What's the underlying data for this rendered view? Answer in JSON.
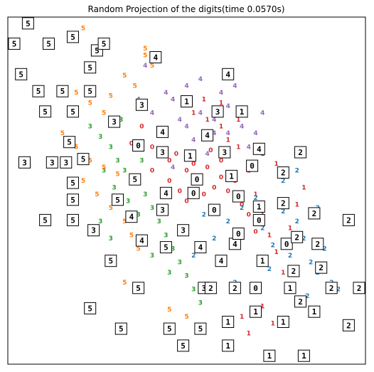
{
  "chart_data": {
    "type": "scatter",
    "title": "Random Projection of the digits(time 0.0570s)",
    "xlabel": "",
    "ylabel": "",
    "xlim": [
      0,
      1
    ],
    "ylim": [
      0,
      1
    ],
    "grid": false,
    "ticks": false,
    "colors": {
      "0": "#d62728",
      "1": "#d62728",
      "2": "#1f77b4",
      "3": "#2ca02c",
      "4": "#9467bd",
      "5": "#ff7f0e"
    },
    "series": [
      {
        "name": "0",
        "label": "0",
        "points": [
          [
            0.34,
            0.63
          ],
          [
            0.37,
            0.68
          ],
          [
            0.4,
            0.62
          ],
          [
            0.43,
            0.66
          ],
          [
            0.45,
            0.58
          ],
          [
            0.47,
            0.6
          ],
          [
            0.5,
            0.55
          ],
          [
            0.52,
            0.57
          ],
          [
            0.54,
            0.52
          ],
          [
            0.56,
            0.56
          ],
          [
            0.58,
            0.5
          ],
          [
            0.6,
            0.53
          ],
          [
            0.62,
            0.49
          ],
          [
            0.64,
            0.52
          ],
          [
            0.66,
            0.45
          ],
          [
            0.68,
            0.42
          ],
          [
            0.7,
            0.37
          ],
          [
            0.55,
            0.48
          ],
          [
            0.6,
            0.58
          ],
          [
            0.62,
            0.61
          ],
          [
            0.57,
            0.61
          ],
          [
            0.48,
            0.49
          ],
          [
            0.45,
            0.52
          ],
          [
            0.4,
            0.55
          ],
          [
            0.5,
            0.46
          ]
        ]
      },
      {
        "name": "1",
        "label": "1",
        "points": [
          [
            0.55,
            0.76
          ],
          [
            0.52,
            0.72
          ],
          [
            0.56,
            0.7
          ],
          [
            0.6,
            0.68
          ],
          [
            0.62,
            0.64
          ],
          [
            0.65,
            0.62
          ],
          [
            0.68,
            0.55
          ],
          [
            0.7,
            0.48
          ],
          [
            0.72,
            0.42
          ],
          [
            0.74,
            0.36
          ],
          [
            0.76,
            0.31
          ],
          [
            0.78,
            0.25
          ],
          [
            0.7,
            0.2
          ],
          [
            0.72,
            0.15
          ],
          [
            0.75,
            0.1
          ],
          [
            0.68,
            0.07
          ],
          [
            0.66,
            0.12
          ],
          [
            0.8,
            0.38
          ],
          [
            0.82,
            0.45
          ],
          [
            0.86,
            0.42
          ],
          [
            0.84,
            0.5
          ],
          [
            0.76,
            0.57
          ],
          [
            0.72,
            0.6
          ],
          [
            0.65,
            0.7
          ],
          [
            0.6,
            0.75
          ]
        ]
      },
      {
        "name": "2",
        "label": "2",
        "points": [
          [
            0.62,
            0.4
          ],
          [
            0.66,
            0.44
          ],
          [
            0.7,
            0.47
          ],
          [
            0.72,
            0.38
          ],
          [
            0.75,
            0.33
          ],
          [
            0.78,
            0.43
          ],
          [
            0.8,
            0.3
          ],
          [
            0.82,
            0.4
          ],
          [
            0.84,
            0.35
          ],
          [
            0.86,
            0.28
          ],
          [
            0.88,
            0.25
          ],
          [
            0.9,
            0.32
          ],
          [
            0.92,
            0.22
          ],
          [
            0.58,
            0.35
          ],
          [
            0.55,
            0.42
          ],
          [
            0.6,
            0.28
          ],
          [
            0.64,
            0.22
          ],
          [
            0.52,
            0.3
          ],
          [
            0.48,
            0.38
          ],
          [
            0.74,
            0.26
          ],
          [
            0.78,
            0.52
          ],
          [
            0.82,
            0.55
          ],
          [
            0.88,
            0.44
          ],
          [
            0.94,
            0.2
          ],
          [
            0.85,
            0.18
          ]
        ]
      },
      {
        "name": "3",
        "label": "3",
        "points": [
          [
            0.22,
            0.68
          ],
          [
            0.25,
            0.65
          ],
          [
            0.28,
            0.62
          ],
          [
            0.3,
            0.58
          ],
          [
            0.32,
            0.55
          ],
          [
            0.35,
            0.52
          ],
          [
            0.38,
            0.48
          ],
          [
            0.4,
            0.44
          ],
          [
            0.42,
            0.4
          ],
          [
            0.44,
            0.36
          ],
          [
            0.46,
            0.32
          ],
          [
            0.48,
            0.28
          ],
          [
            0.5,
            0.24
          ],
          [
            0.26,
            0.55
          ],
          [
            0.29,
            0.5
          ],
          [
            0.33,
            0.46
          ],
          [
            0.36,
            0.42
          ],
          [
            0.25,
            0.4
          ],
          [
            0.28,
            0.35
          ],
          [
            0.52,
            0.2
          ],
          [
            0.54,
            0.16
          ],
          [
            0.45,
            0.25
          ],
          [
            0.4,
            0.3
          ],
          [
            0.37,
            0.58
          ],
          [
            0.31,
            0.7
          ]
        ]
      },
      {
        "name": "4",
        "label": "4",
        "points": [
          [
            0.38,
            0.86
          ],
          [
            0.46,
            0.76
          ],
          [
            0.5,
            0.8
          ],
          [
            0.54,
            0.72
          ],
          [
            0.58,
            0.7
          ],
          [
            0.62,
            0.74
          ],
          [
            0.66,
            0.68
          ],
          [
            0.7,
            0.66
          ],
          [
            0.72,
            0.72
          ],
          [
            0.6,
            0.78
          ],
          [
            0.48,
            0.7
          ],
          [
            0.44,
            0.66
          ],
          [
            0.42,
            0.6
          ],
          [
            0.46,
            0.56
          ],
          [
            0.52,
            0.64
          ],
          [
            0.56,
            0.6
          ],
          [
            0.4,
            0.72
          ],
          [
            0.36,
            0.76
          ],
          [
            0.64,
            0.8
          ],
          [
            0.68,
            0.62
          ],
          [
            0.58,
            0.66
          ],
          [
            0.5,
            0.68
          ],
          [
            0.44,
            0.78
          ],
          [
            0.54,
            0.82
          ],
          [
            0.62,
            0.66
          ]
        ]
      },
      {
        "name": "5",
        "label": "5",
        "points": [
          [
            0.2,
            0.97
          ],
          [
            0.38,
            0.91
          ],
          [
            0.38,
            0.89
          ],
          [
            0.4,
            0.86
          ],
          [
            0.32,
            0.83
          ],
          [
            0.35,
            0.8
          ],
          [
            0.18,
            0.78
          ],
          [
            0.22,
            0.75
          ],
          [
            0.26,
            0.72
          ],
          [
            0.3,
            0.7
          ],
          [
            0.14,
            0.66
          ],
          [
            0.18,
            0.62
          ],
          [
            0.22,
            0.58
          ],
          [
            0.26,
            0.56
          ],
          [
            0.3,
            0.54
          ],
          [
            0.2,
            0.52
          ],
          [
            0.24,
            0.48
          ],
          [
            0.28,
            0.44
          ],
          [
            0.32,
            0.4
          ],
          [
            0.34,
            0.36
          ],
          [
            0.36,
            0.32
          ],
          [
            0.32,
            0.22
          ],
          [
            0.45,
            0.14
          ],
          [
            0.5,
            0.12
          ],
          [
            0.28,
            0.77
          ]
        ]
      }
    ],
    "thumbnails": [
      {
        "label": "5",
        "x": 0.04,
        "y": 0.99
      },
      {
        "label": "5",
        "x": 0.0,
        "y": 0.93
      },
      {
        "label": "5",
        "x": 0.1,
        "y": 0.93
      },
      {
        "label": "5",
        "x": 0.17,
        "y": 0.95
      },
      {
        "label": "5",
        "x": 0.24,
        "y": 0.91
      },
      {
        "label": "5",
        "x": 0.26,
        "y": 0.93
      },
      {
        "label": "5",
        "x": 0.02,
        "y": 0.84
      },
      {
        "label": "5",
        "x": 0.07,
        "y": 0.79
      },
      {
        "label": "5",
        "x": 0.14,
        "y": 0.79
      },
      {
        "label": "5",
        "x": 0.22,
        "y": 0.86
      },
      {
        "label": "5",
        "x": 0.22,
        "y": 0.79
      },
      {
        "label": "5",
        "x": 0.09,
        "y": 0.73
      },
      {
        "label": "5",
        "x": 0.17,
        "y": 0.73
      },
      {
        "label": "5",
        "x": 0.16,
        "y": 0.64
      },
      {
        "label": "5",
        "x": 0.2,
        "y": 0.59
      },
      {
        "label": "5",
        "x": 0.17,
        "y": 0.52
      },
      {
        "label": "5",
        "x": 0.17,
        "y": 0.47
      },
      {
        "label": "5",
        "x": 0.09,
        "y": 0.41
      },
      {
        "label": "5",
        "x": 0.17,
        "y": 0.41
      },
      {
        "label": "5",
        "x": 0.22,
        "y": 0.15
      },
      {
        "label": "5",
        "x": 0.31,
        "y": 0.09
      },
      {
        "label": "5",
        "x": 0.45,
        "y": 0.09
      },
      {
        "label": "5",
        "x": 0.54,
        "y": 0.09
      },
      {
        "label": "5",
        "x": 0.49,
        "y": 0.04
      },
      {
        "label": "5",
        "x": 0.28,
        "y": 0.29
      },
      {
        "label": "5",
        "x": 0.3,
        "y": 0.47
      },
      {
        "label": "5",
        "x": 0.35,
        "y": 0.53
      },
      {
        "label": "5",
        "x": 0.44,
        "y": 0.33
      },
      {
        "label": "5",
        "x": 0.36,
        "y": 0.21
      },
      {
        "label": "3",
        "x": 0.03,
        "y": 0.58
      },
      {
        "label": "3",
        "x": 0.11,
        "y": 0.58
      },
      {
        "label": "3",
        "x": 0.15,
        "y": 0.58
      },
      {
        "label": "3",
        "x": 0.23,
        "y": 0.38
      },
      {
        "label": "3",
        "x": 0.37,
        "y": 0.75
      },
      {
        "label": "3",
        "x": 0.43,
        "y": 0.61
      },
      {
        "label": "3",
        "x": 0.43,
        "y": 0.44
      },
      {
        "label": "3",
        "x": 0.49,
        "y": 0.38
      },
      {
        "label": "3",
        "x": 0.61,
        "y": 0.61
      },
      {
        "label": "3",
        "x": 0.59,
        "y": 0.73
      },
      {
        "label": "3",
        "x": 0.29,
        "y": 0.7
      },
      {
        "label": "3",
        "x": 0.55,
        "y": 0.21
      },
      {
        "label": "4",
        "x": 0.41,
        "y": 0.89
      },
      {
        "label": "4",
        "x": 0.62,
        "y": 0.84
      },
      {
        "label": "4",
        "x": 0.43,
        "y": 0.67
      },
      {
        "label": "4",
        "x": 0.56,
        "y": 0.66
      },
      {
        "label": "4",
        "x": 0.71,
        "y": 0.62
      },
      {
        "label": "4",
        "x": 0.34,
        "y": 0.42
      },
      {
        "label": "4",
        "x": 0.37,
        "y": 0.35
      },
      {
        "label": "4",
        "x": 0.54,
        "y": 0.33
      },
      {
        "label": "4",
        "x": 0.6,
        "y": 0.29
      },
      {
        "label": "4",
        "x": 0.64,
        "y": 0.34
      },
      {
        "label": "4",
        "x": 0.44,
        "y": 0.49
      },
      {
        "label": "1",
        "x": 0.5,
        "y": 0.76
      },
      {
        "label": "1",
        "x": 0.51,
        "y": 0.6
      },
      {
        "label": "1",
        "x": 0.66,
        "y": 0.73
      },
      {
        "label": "1",
        "x": 0.63,
        "y": 0.54
      },
      {
        "label": "1",
        "x": 0.71,
        "y": 0.45
      },
      {
        "label": "1",
        "x": 0.72,
        "y": 0.29
      },
      {
        "label": "1",
        "x": 0.7,
        "y": 0.14
      },
      {
        "label": "1",
        "x": 0.78,
        "y": 0.11
      },
      {
        "label": "1",
        "x": 0.62,
        "y": 0.11
      },
      {
        "label": "1",
        "x": 0.62,
        "y": 0.04
      },
      {
        "label": "1",
        "x": 0.74,
        "y": 0.01
      },
      {
        "label": "1",
        "x": 0.87,
        "y": 0.14
      },
      {
        "label": "1",
        "x": 0.84,
        "y": 0.01
      },
      {
        "label": "1",
        "x": 0.8,
        "y": 0.21
      },
      {
        "label": "0",
        "x": 0.36,
        "y": 0.63
      },
      {
        "label": "0",
        "x": 0.53,
        "y": 0.53
      },
      {
        "label": "0",
        "x": 0.58,
        "y": 0.44
      },
      {
        "label": "0",
        "x": 0.65,
        "y": 0.48
      },
      {
        "label": "0",
        "x": 0.69,
        "y": 0.57
      },
      {
        "label": "0",
        "x": 0.65,
        "y": 0.37
      },
      {
        "label": "0",
        "x": 0.7,
        "y": 0.21
      },
      {
        "label": "0",
        "x": 0.79,
        "y": 0.34
      },
      {
        "label": "0",
        "x": 0.52,
        "y": 0.49
      },
      {
        "label": "0",
        "x": 0.71,
        "y": 0.41
      },
      {
        "label": "2",
        "x": 0.83,
        "y": 0.61
      },
      {
        "label": "2",
        "x": 0.78,
        "y": 0.55
      },
      {
        "label": "2",
        "x": 0.78,
        "y": 0.46
      },
      {
        "label": "2",
        "x": 0.87,
        "y": 0.43
      },
      {
        "label": "2",
        "x": 0.97,
        "y": 0.41
      },
      {
        "label": "2",
        "x": 0.88,
        "y": 0.34
      },
      {
        "label": "2",
        "x": 0.89,
        "y": 0.27
      },
      {
        "label": "2",
        "x": 0.92,
        "y": 0.21
      },
      {
        "label": "2",
        "x": 1.0,
        "y": 0.21
      },
      {
        "label": "2",
        "x": 0.81,
        "y": 0.26
      },
      {
        "label": "2",
        "x": 0.83,
        "y": 0.17
      },
      {
        "label": "2",
        "x": 0.97,
        "y": 0.1
      },
      {
        "label": "2",
        "x": 0.57,
        "y": 0.21
      },
      {
        "label": "2",
        "x": 0.64,
        "y": 0.21
      },
      {
        "label": "2",
        "x": 0.82,
        "y": 0.36
      }
    ]
  }
}
